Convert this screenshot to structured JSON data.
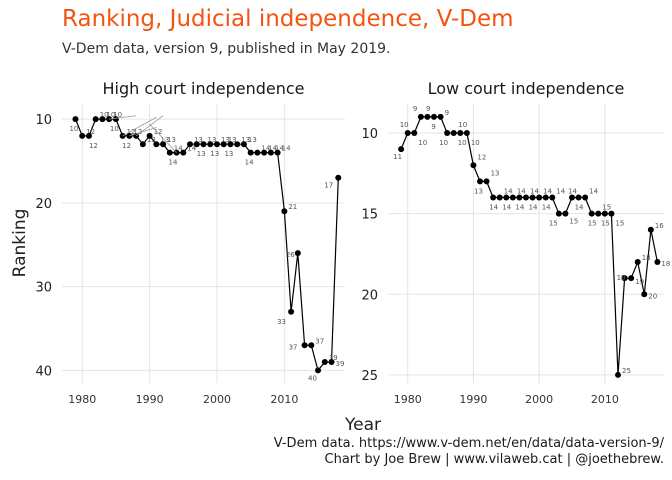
{
  "title": "Ranking, Judicial independence, V-Dem",
  "subtitle": "V-Dem data, version 9, published in May 2019.",
  "caption_line1": "V-Dem data. https://www.v-dem.net/en/data/data-version-9/",
  "caption_line2": "Chart by Joe Brew | www.vilaweb.cat | @joethebrew.",
  "colors": {
    "title": "#f4540f",
    "line": "#000000",
    "grid": "#e5e5e5",
    "point_label": "#555555",
    "leader": "#999999"
  },
  "chart_data": {
    "type": "line",
    "xlabel": "Year",
    "ylabel": "Ranking",
    "y_reversed": true,
    "grid": true,
    "panels": [
      {
        "title": "High court independence",
        "x_ticks": [
          1980,
          1990,
          2000,
          2010
        ],
        "y_ticks": [
          10,
          20,
          30,
          40
        ],
        "xlim": [
          1977,
          2019
        ],
        "ylim": [
          8.2,
          41.5
        ],
        "series": {
          "x": [
            1979,
            1980,
            1981,
            1982,
            1983,
            1984,
            1985,
            1986,
            1987,
            1988,
            1989,
            1990,
            1991,
            1992,
            1993,
            1994,
            1995,
            1996,
            1997,
            1998,
            1999,
            2000,
            2001,
            2002,
            2003,
            2004,
            2005,
            2006,
            2007,
            2008,
            2009,
            2010,
            2011,
            2012,
            2013,
            2014,
            2015,
            2016,
            2017,
            2018
          ],
          "y": [
            10,
            12,
            12,
            10,
            10,
            10,
            10,
            12,
            12,
            12,
            13,
            12,
            13,
            13,
            14,
            14,
            14,
            13,
            13,
            13,
            13,
            13,
            13,
            13,
            13,
            13,
            14,
            14,
            14,
            14,
            14,
            21,
            33,
            26,
            37,
            37,
            40,
            39,
            39,
            17
          ]
        }
      },
      {
        "title": "Low court independence",
        "x_ticks": [
          1980,
          1990,
          2000,
          2010
        ],
        "y_ticks": [
          10,
          15,
          20,
          25
        ],
        "xlim": [
          1977,
          2019
        ],
        "ylim": [
          8.2,
          25.5
        ],
        "series": {
          "x": [
            1979,
            1980,
            1981,
            1982,
            1983,
            1984,
            1985,
            1986,
            1987,
            1988,
            1989,
            1990,
            1991,
            1992,
            1993,
            1994,
            1995,
            1996,
            1997,
            1998,
            1999,
            2000,
            2001,
            2002,
            2003,
            2004,
            2005,
            2006,
            2007,
            2008,
            2009,
            2010,
            2011,
            2012,
            2013,
            2014,
            2015,
            2016,
            2017,
            2018
          ],
          "y": [
            11,
            10,
            10,
            9,
            9,
            9,
            9,
            10,
            10,
            10,
            10,
            12,
            13,
            13,
            14,
            14,
            14,
            14,
            14,
            14,
            14,
            14,
            14,
            14,
            15,
            15,
            14,
            14,
            14,
            15,
            15,
            15,
            15,
            25,
            19,
            19,
            18,
            20,
            16,
            18
          ]
        }
      }
    ]
  }
}
